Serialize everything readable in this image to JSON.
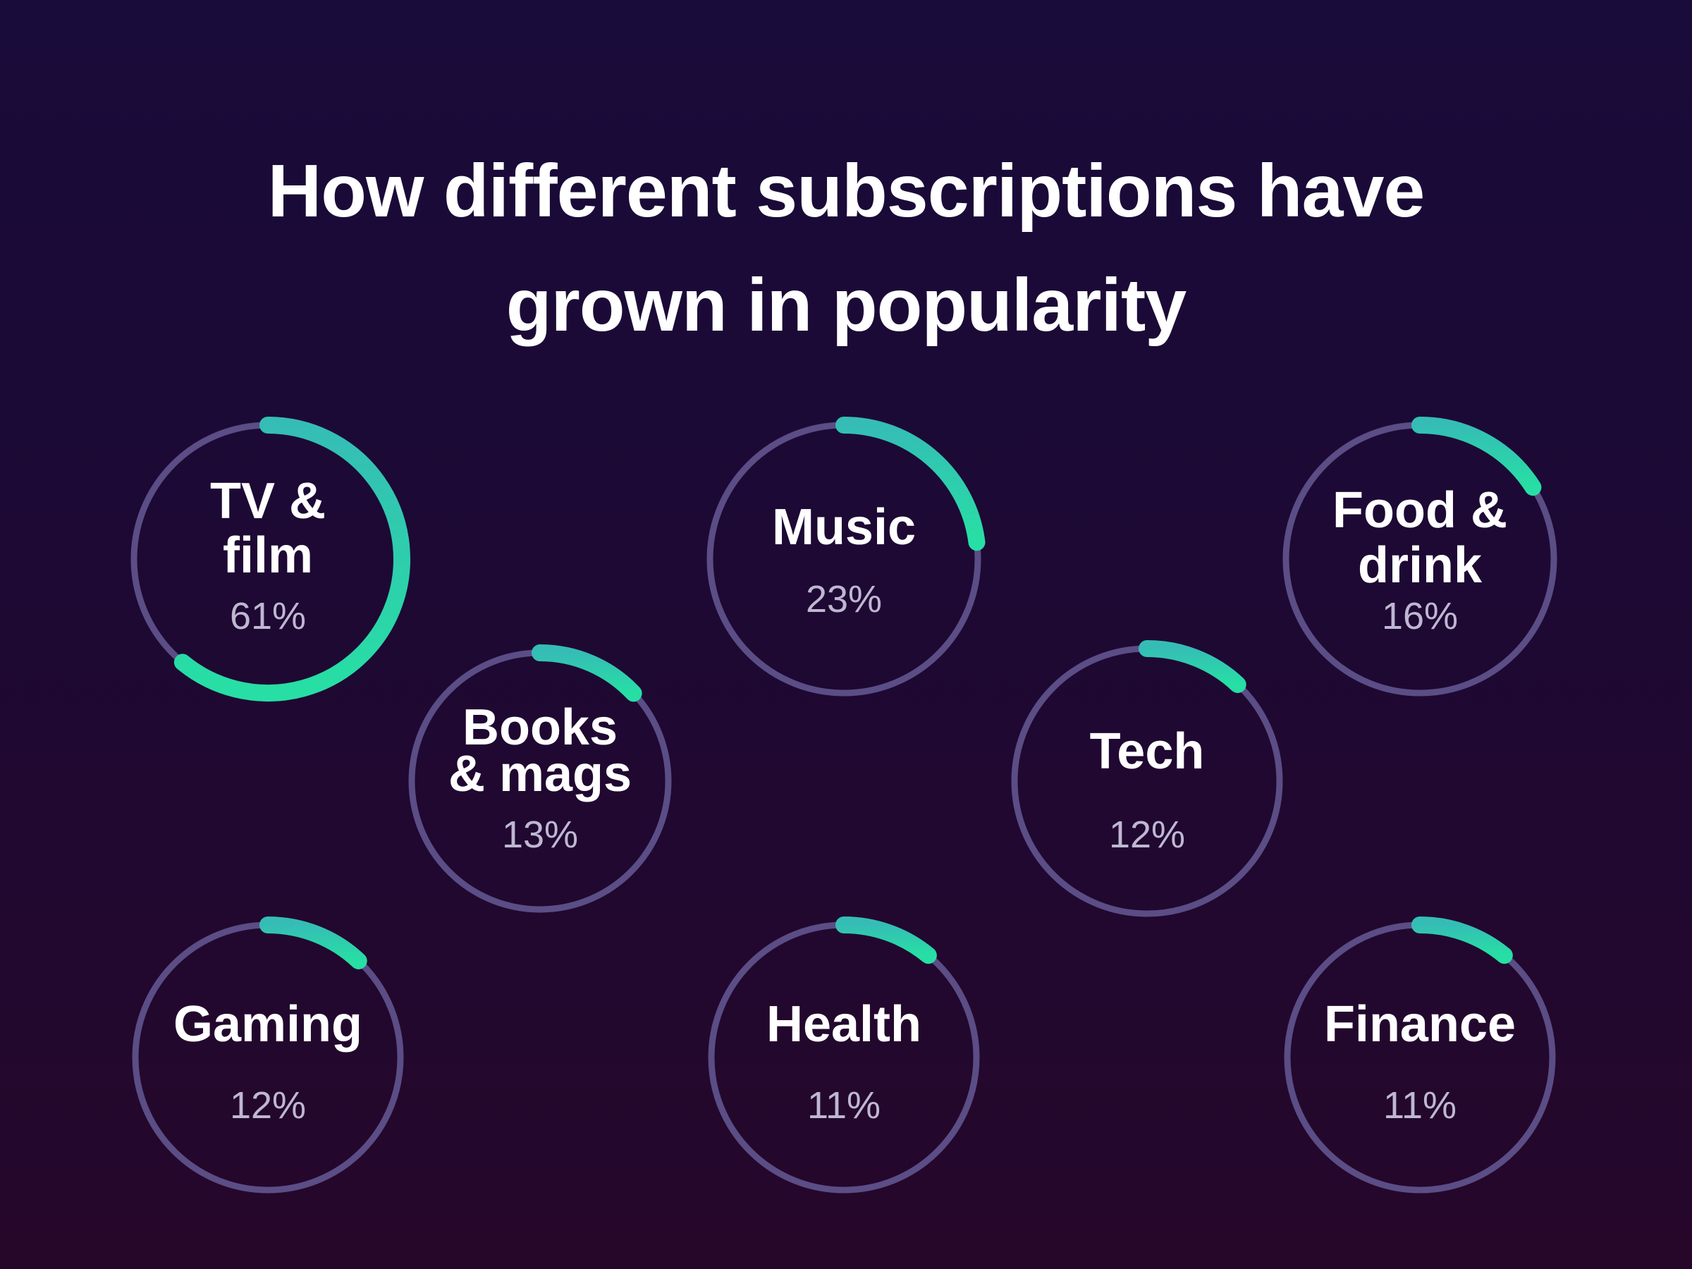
{
  "title": {
    "line1": "How different subscriptions have",
    "line2": "grown in popularity"
  },
  "colors": {
    "background_top": "#190b3a",
    "background_bottom": "#26072a",
    "track": "#5b4d85",
    "arc_start": "#35bdb5",
    "arc_end": "#27dfa4",
    "label": "#ffffff",
    "percent": "#bfb7d2"
  },
  "chart_data": {
    "type": "radial-progress",
    "title": "How different subscriptions have grown in popularity",
    "unit": "%",
    "items": [
      {
        "name": "TV & film",
        "label_lines": [
          "TV &",
          "film"
        ],
        "value": 61,
        "display": "61%"
      },
      {
        "name": "Music",
        "label_lines": [
          "Music"
        ],
        "value": 23,
        "display": "23%"
      },
      {
        "name": "Food & drink",
        "label_lines": [
          "Food &",
          "drink"
        ],
        "value": 16,
        "display": "16%"
      },
      {
        "name": "Books & mags",
        "label_lines": [
          "Books",
          "& mags"
        ],
        "value": 13,
        "display": "13%"
      },
      {
        "name": "Tech",
        "label_lines": [
          "Tech"
        ],
        "value": 12,
        "display": "12%"
      },
      {
        "name": "Gaming",
        "label_lines": [
          "Gaming"
        ],
        "value": 12,
        "display": "12%"
      },
      {
        "name": "Health",
        "label_lines": [
          "Health"
        ],
        "value": 11,
        "display": "11%"
      },
      {
        "name": "Finance",
        "label_lines": [
          "Finance"
        ],
        "value": 11,
        "display": "11%"
      }
    ]
  }
}
